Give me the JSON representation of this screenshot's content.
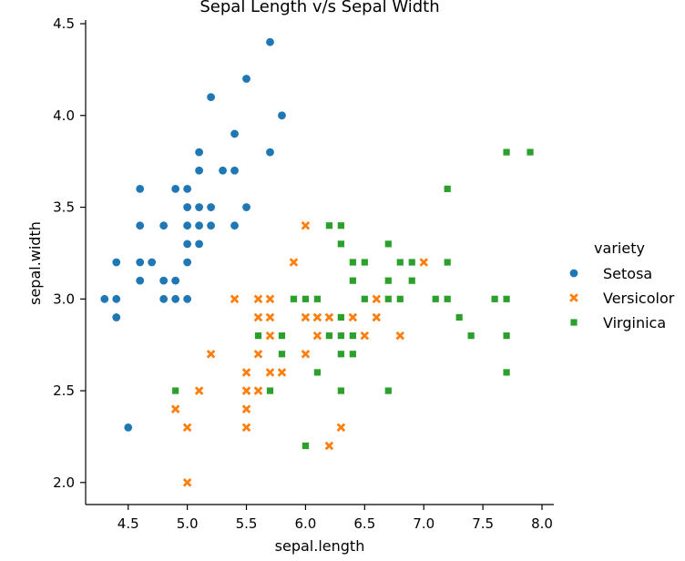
{
  "chart_data": {
    "type": "scatter",
    "title": "Sepal Length v/s Sepal Width",
    "xlabel": "sepal.length",
    "ylabel": "sepal.width",
    "xlim": [
      4.14,
      8.1
    ],
    "ylim": [
      1.88,
      4.52
    ],
    "xticks": [
      "4.5",
      "5.0",
      "5.5",
      "6.0",
      "6.5",
      "7.0",
      "7.5",
      "8.0"
    ],
    "yticks": [
      "2.0",
      "2.5",
      "3.0",
      "3.5",
      "4.0",
      "4.5"
    ],
    "grid": false,
    "legend": {
      "title": "variety",
      "placement": "right"
    },
    "series": [
      {
        "name": "Setosa",
        "color": "#1f77b4",
        "marker": "circle",
        "points": [
          [
            4.3,
            3.0
          ],
          [
            4.4,
            3.0
          ],
          [
            4.4,
            2.9
          ],
          [
            4.4,
            3.2
          ],
          [
            4.5,
            2.3
          ],
          [
            4.6,
            3.6
          ],
          [
            4.6,
            3.4
          ],
          [
            4.6,
            3.2
          ],
          [
            4.6,
            3.1
          ],
          [
            4.7,
            3.2
          ],
          [
            4.8,
            3.4
          ],
          [
            4.8,
            3.1
          ],
          [
            4.8,
            3.0
          ],
          [
            4.9,
            3.6
          ],
          [
            4.9,
            3.1
          ],
          [
            4.9,
            3.0
          ],
          [
            5.0,
            3.6
          ],
          [
            5.0,
            3.5
          ],
          [
            5.0,
            3.4
          ],
          [
            5.0,
            3.3
          ],
          [
            5.0,
            3.2
          ],
          [
            5.0,
            3.0
          ],
          [
            5.1,
            3.8
          ],
          [
            5.1,
            3.7
          ],
          [
            5.1,
            3.5
          ],
          [
            5.1,
            3.4
          ],
          [
            5.1,
            3.3
          ],
          [
            5.2,
            4.1
          ],
          [
            5.2,
            3.5
          ],
          [
            5.2,
            3.4
          ],
          [
            5.3,
            3.7
          ],
          [
            5.4,
            3.9
          ],
          [
            5.4,
            3.7
          ],
          [
            5.4,
            3.4
          ],
          [
            5.5,
            4.2
          ],
          [
            5.5,
            3.5
          ],
          [
            5.7,
            4.4
          ],
          [
            5.7,
            3.8
          ],
          [
            5.8,
            4.0
          ]
        ]
      },
      {
        "name": "Versicolor",
        "color": "#ff7f0e",
        "marker": "x",
        "points": [
          [
            4.9,
            2.4
          ],
          [
            5.0,
            2.3
          ],
          [
            5.0,
            2.0
          ],
          [
            5.1,
            2.5
          ],
          [
            5.2,
            2.7
          ],
          [
            5.4,
            3.0
          ],
          [
            5.5,
            2.6
          ],
          [
            5.5,
            2.5
          ],
          [
            5.5,
            2.4
          ],
          [
            5.5,
            2.3
          ],
          [
            5.6,
            3.0
          ],
          [
            5.6,
            2.9
          ],
          [
            5.6,
            2.7
          ],
          [
            5.6,
            2.5
          ],
          [
            5.7,
            3.0
          ],
          [
            5.7,
            2.9
          ],
          [
            5.7,
            2.8
          ],
          [
            5.7,
            2.6
          ],
          [
            5.8,
            2.7
          ],
          [
            5.8,
            2.6
          ],
          [
            5.9,
            3.2
          ],
          [
            5.9,
            3.0
          ],
          [
            6.0,
            3.4
          ],
          [
            6.0,
            2.9
          ],
          [
            6.0,
            2.7
          ],
          [
            6.0,
            2.2
          ],
          [
            6.1,
            3.0
          ],
          [
            6.1,
            2.9
          ],
          [
            6.1,
            2.8
          ],
          [
            6.2,
            2.9
          ],
          [
            6.2,
            2.2
          ],
          [
            6.3,
            3.3
          ],
          [
            6.3,
            2.5
          ],
          [
            6.3,
            2.3
          ],
          [
            6.4,
            3.2
          ],
          [
            6.4,
            2.9
          ],
          [
            6.5,
            2.8
          ],
          [
            6.6,
            3.0
          ],
          [
            6.6,
            2.9
          ],
          [
            6.7,
            3.1
          ],
          [
            6.7,
            3.0
          ],
          [
            6.8,
            2.8
          ],
          [
            6.9,
            3.1
          ],
          [
            7.0,
            3.2
          ]
        ]
      },
      {
        "name": "Virginica",
        "color": "#2ca02c",
        "marker": "square",
        "points": [
          [
            4.9,
            2.5
          ],
          [
            5.6,
            2.8
          ],
          [
            5.7,
            2.5
          ],
          [
            5.8,
            2.8
          ],
          [
            5.8,
            2.7
          ],
          [
            5.9,
            3.0
          ],
          [
            6.0,
            3.0
          ],
          [
            6.0,
            2.2
          ],
          [
            6.1,
            3.0
          ],
          [
            6.1,
            2.6
          ],
          [
            6.2,
            3.4
          ],
          [
            6.2,
            2.8
          ],
          [
            6.3,
            3.4
          ],
          [
            6.3,
            3.3
          ],
          [
            6.3,
            2.9
          ],
          [
            6.3,
            2.8
          ],
          [
            6.3,
            2.7
          ],
          [
            6.3,
            2.5
          ],
          [
            6.4,
            3.2
          ],
          [
            6.4,
            3.1
          ],
          [
            6.4,
            2.8
          ],
          [
            6.4,
            2.7
          ],
          [
            6.5,
            3.2
          ],
          [
            6.5,
            3.0
          ],
          [
            6.7,
            3.3
          ],
          [
            6.7,
            3.1
          ],
          [
            6.7,
            3.0
          ],
          [
            6.7,
            2.5
          ],
          [
            6.8,
            3.2
          ],
          [
            6.8,
            3.0
          ],
          [
            6.9,
            3.2
          ],
          [
            6.9,
            3.1
          ],
          [
            7.1,
            3.0
          ],
          [
            7.2,
            3.6
          ],
          [
            7.2,
            3.2
          ],
          [
            7.2,
            3.0
          ],
          [
            7.3,
            2.9
          ],
          [
            7.4,
            2.8
          ],
          [
            7.6,
            3.0
          ],
          [
            7.7,
            3.8
          ],
          [
            7.7,
            3.0
          ],
          [
            7.7,
            2.8
          ],
          [
            7.7,
            2.6
          ],
          [
            7.9,
            3.8
          ]
        ]
      }
    ]
  }
}
